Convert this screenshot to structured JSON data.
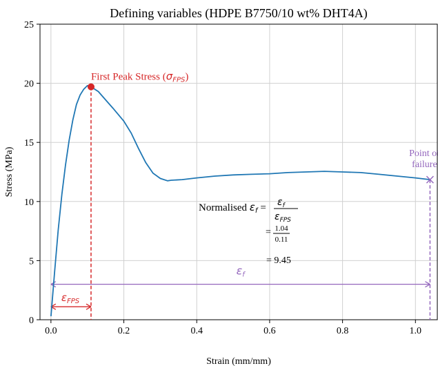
{
  "chart_data": {
    "type": "line",
    "title": "Defining variables (HDPE B7750/10 wt% DHT4A)",
    "xlabel": "Strain (mm/mm)",
    "ylabel": "Stress (MPa)",
    "xlim": [
      -0.03,
      1.06
    ],
    "ylim": [
      0,
      25
    ],
    "xticks": [
      0.0,
      0.2,
      0.4,
      0.6,
      0.8,
      1.0
    ],
    "xtick_labels": [
      "0.0",
      "0.2",
      "0.4",
      "0.6",
      "0.8",
      "1.0"
    ],
    "yticks": [
      0,
      5,
      10,
      15,
      20,
      25
    ],
    "ytick_labels": [
      "0",
      "5",
      "10",
      "15",
      "20",
      "25"
    ],
    "grid": true,
    "line_color": "#1f77b4",
    "series": [
      {
        "x": [
          0.0,
          0.01,
          0.02,
          0.03,
          0.04,
          0.05,
          0.06,
          0.07,
          0.08,
          0.09,
          0.1,
          0.11,
          0.13,
          0.15,
          0.17,
          0.2,
          0.22,
          0.24,
          0.26,
          0.28,
          0.3,
          0.32,
          0.33,
          0.36,
          0.4,
          0.45,
          0.5,
          0.55,
          0.6,
          0.65,
          0.7,
          0.75,
          0.8,
          0.85,
          0.9,
          0.95,
          1.0,
          1.04
        ],
        "y": [
          0.3,
          4.0,
          7.6,
          10.6,
          13.1,
          15.2,
          16.9,
          18.2,
          19.0,
          19.5,
          19.8,
          19.7,
          19.3,
          18.6,
          17.9,
          16.8,
          15.8,
          14.5,
          13.3,
          12.4,
          11.95,
          11.75,
          11.8,
          11.85,
          12.0,
          12.15,
          12.25,
          12.3,
          12.35,
          12.45,
          12.5,
          12.55,
          12.5,
          12.45,
          12.3,
          12.15,
          12.0,
          11.85
        ]
      }
    ],
    "annotations": {
      "first_peak": {
        "x": 0.11,
        "y": 19.7,
        "label": "First Peak Stress (",
        "symbol": "σ",
        "subscript": "FPS",
        "close": ")",
        "color": "#d62728"
      },
      "failure": {
        "x": 1.04,
        "y": 11.85,
        "label_line1": "Point of",
        "label_line2": "failure",
        "color": "#9467bd"
      },
      "eps_fps": {
        "from": 0.0,
        "to": 0.11,
        "y": 1.1,
        "symbol": "ε",
        "subscript": "FPS",
        "color": "#d62728"
      },
      "eps_f": {
        "from": 0.0,
        "to": 1.04,
        "y": 3.0,
        "symbol": "ε",
        "subscript": "f",
        "color": "#9467bd"
      },
      "formula": {
        "prefix": "Normalised ",
        "lhs_symbol": "ε",
        "lhs_sub": "f",
        "equals": "=",
        "num_symbol": "ε",
        "num_sub": "f",
        "den_symbol": "ε",
        "den_sub": "FPS",
        "line2_num": "1.04",
        "line2_den": "0.11",
        "line3": "= 9.45"
      }
    }
  }
}
